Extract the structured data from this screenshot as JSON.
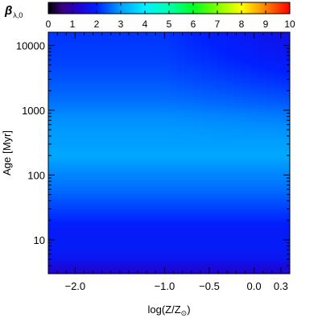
{
  "chart_data": {
    "type": "heatmap",
    "colorbar": {
      "label_symbol": "β",
      "label_subscript": "λ,0",
      "range": [
        0,
        10
      ],
      "ticks": [
        0,
        1,
        2,
        3,
        4,
        5,
        6,
        7,
        8,
        9,
        10
      ],
      "tick_labels": [
        "0",
        "1",
        "2",
        "3",
        "4",
        "5",
        "6",
        "7",
        "8",
        "9",
        "10"
      ],
      "colormap": "rainbow"
    },
    "x_axis": {
      "label_main": "log(Z/Z",
      "label_sub": "⊙",
      "label_close": ")",
      "range": [
        -2.3,
        0.4
      ],
      "ticks": [
        -2.0,
        -1.0,
        -0.5,
        0.0,
        0.3
      ],
      "tick_labels": [
        "−2.0",
        "−1.0",
        "−0.5",
        "0.0",
        "0.3"
      ]
    },
    "y_axis": {
      "label_main": "Age",
      "label_unit": "[Myr]",
      "scale": "log",
      "range": [
        3,
        16000
      ],
      "ticks": [
        10,
        100,
        1000,
        10000
      ],
      "tick_labels": [
        "10",
        "100",
        "1000",
        "10000"
      ]
    },
    "field": {
      "description_note": "",
      "age_profile": [
        {
          "age": 3,
          "value": 1.3
        },
        {
          "age": 4,
          "value": 1.45
        },
        {
          "age": 5,
          "value": 1.75
        },
        {
          "age": 8,
          "value": 1.9
        },
        {
          "age": 15,
          "value": 1.9
        },
        {
          "age": 30,
          "value": 2.25
        },
        {
          "age": 60,
          "value": 2.6
        },
        {
          "age": 120,
          "value": 2.85
        },
        {
          "age": 200,
          "value": 3.1
        },
        {
          "age": 300,
          "value": 3.0
        },
        {
          "age": 500,
          "value": 2.95
        },
        {
          "age": 800,
          "value": 2.85
        },
        {
          "age": 1500,
          "value": 2.6
        },
        {
          "age": 3000,
          "value": 2.4
        },
        {
          "age": 6000,
          "value": 2.25
        },
        {
          "age": 16000,
          "value": 2.15
        }
      ],
      "metallicity_drop": {
        "z_start": -1.0,
        "z_end": 0.4,
        "age_onset": 300,
        "max_drop": 0.55
      }
    }
  }
}
